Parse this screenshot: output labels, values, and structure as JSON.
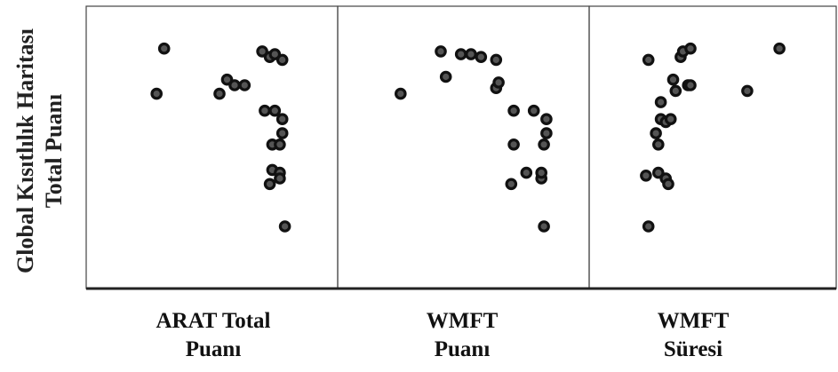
{
  "chart_data": {
    "type": "scatter",
    "ylabel": [
      "Global Kısıtlılık Haritası",
      "Total Puanı"
    ],
    "grid": false,
    "legend": "none",
    "panels": [
      {
        "xlabel": [
          "ARAT Total",
          "Puanı"
        ],
        "points": [
          [
            0.28,
            0.69
          ],
          [
            0.31,
            0.85
          ],
          [
            0.53,
            0.69
          ],
          [
            0.56,
            0.74
          ],
          [
            0.59,
            0.72
          ],
          [
            0.63,
            0.72
          ],
          [
            0.71,
            0.63
          ],
          [
            0.75,
            0.63
          ],
          [
            0.7,
            0.84
          ],
          [
            0.73,
            0.82
          ],
          [
            0.75,
            0.83
          ],
          [
            0.78,
            0.81
          ],
          [
            0.73,
            0.37
          ],
          [
            0.74,
            0.42
          ],
          [
            0.77,
            0.41
          ],
          [
            0.77,
            0.39
          ],
          [
            0.74,
            0.51
          ],
          [
            0.77,
            0.51
          ],
          [
            0.78,
            0.55
          ],
          [
            0.78,
            0.6
          ],
          [
            0.79,
            0.22
          ]
        ]
      },
      {
        "xlabel": [
          "WMFT",
          "Puanı"
        ],
        "points": [
          [
            0.25,
            0.69
          ],
          [
            0.43,
            0.75
          ],
          [
            0.41,
            0.84
          ],
          [
            0.49,
            0.83
          ],
          [
            0.53,
            0.83
          ],
          [
            0.57,
            0.82
          ],
          [
            0.63,
            0.81
          ],
          [
            0.63,
            0.71
          ],
          [
            0.64,
            0.73
          ],
          [
            0.7,
            0.63
          ],
          [
            0.78,
            0.63
          ],
          [
            0.69,
            0.37
          ],
          [
            0.75,
            0.41
          ],
          [
            0.7,
            0.51
          ],
          [
            0.81,
            0.39
          ],
          [
            0.81,
            0.41
          ],
          [
            0.82,
            0.51
          ],
          [
            0.83,
            0.55
          ],
          [
            0.83,
            0.6
          ],
          [
            0.82,
            0.22
          ]
        ]
      },
      {
        "xlabel": [
          "WMFT",
          "Süresi"
        ],
        "points": [
          [
            0.24,
            0.22
          ],
          [
            0.23,
            0.4
          ],
          [
            0.28,
            0.41
          ],
          [
            0.31,
            0.39
          ],
          [
            0.32,
            0.37
          ],
          [
            0.28,
            0.51
          ],
          [
            0.27,
            0.55
          ],
          [
            0.29,
            0.6
          ],
          [
            0.31,
            0.59
          ],
          [
            0.33,
            0.6
          ],
          [
            0.29,
            0.66
          ],
          [
            0.35,
            0.7
          ],
          [
            0.34,
            0.74
          ],
          [
            0.4,
            0.72
          ],
          [
            0.41,
            0.72
          ],
          [
            0.24,
            0.81
          ],
          [
            0.37,
            0.82
          ],
          [
            0.38,
            0.84
          ],
          [
            0.41,
            0.85
          ],
          [
            0.64,
            0.7
          ],
          [
            0.77,
            0.85
          ]
        ]
      }
    ]
  }
}
